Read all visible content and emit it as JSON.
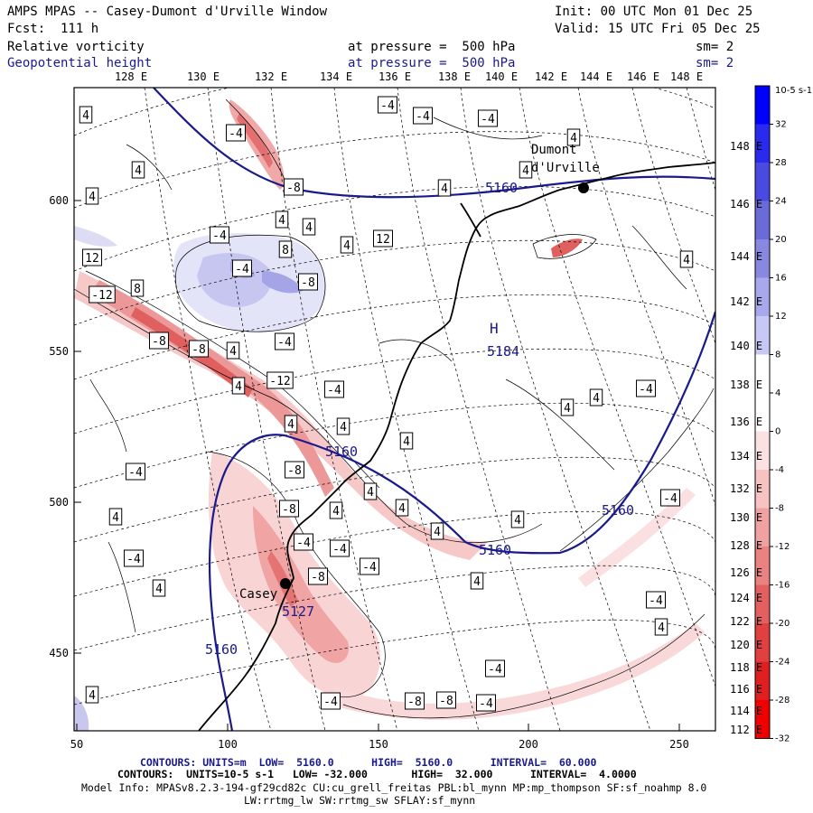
{
  "header": {
    "title": "AMPS MPAS -- Casey-Dumont d'Urville Window",
    "init": "Init: 00 UTC Mon 01 Dec 25",
    "fcst": "Fcst:  111 h",
    "valid": "Valid: 15 UTC Fri 05 Dec 25",
    "field1": "Relative vorticity",
    "field1_level": "at pressure =  500 hPa",
    "field1_sm": "sm= 2",
    "field2": "Geopotential height",
    "field2_level": "at pressure =  500 hPa",
    "field2_sm": "sm= 2"
  },
  "axes": {
    "top_lon_labels": [
      "128 E",
      "130 E",
      "132 E",
      "134 E",
      "136 E",
      "138 E",
      "140 E",
      "142 E",
      "144 E",
      "146 E",
      "148 E"
    ],
    "right_lon_labels": [
      "148 E",
      "146 E",
      "144 E",
      "142 E",
      "140 E",
      "138 E",
      "136 E",
      "134 E",
      "132 E",
      "130 E",
      "128 E",
      "126 E",
      "124 E",
      "122 E",
      "120 E",
      "118 E",
      "116 E",
      "114 E",
      "112 E"
    ],
    "left_y_labels": [
      "600",
      "550",
      "500",
      "450"
    ],
    "bottom_x_labels": [
      "50",
      "100",
      "150",
      "200",
      "250"
    ]
  },
  "colorbar": {
    "unit_label": "10-5 s-1",
    "ticks": [
      "32",
      "28",
      "24",
      "20",
      "16",
      "12",
      "8",
      "4",
      "0",
      "-4",
      "-8",
      "-12",
      "-16",
      "-20",
      "-24",
      "-28",
      "-32"
    ],
    "colors": [
      "#0000ff",
      "#2a2aee",
      "#4a4ae0",
      "#6a6ad8",
      "#8888e0",
      "#a8a8ec",
      "#c8c8f4",
      "#ffffff",
      "#ffffff",
      "#fbe2e2",
      "#f6c2c2",
      "#f0a2a2",
      "#ea8282",
      "#e46060",
      "#e04040",
      "#e02020",
      "#f00000"
    ]
  },
  "map": {
    "stations": [
      "Dumont d'Urville",
      "Casey"
    ],
    "station_line1": "Dumont",
    "station_line2": "d'Urville",
    "station_casey": "Casey",
    "height_labels": [
      "5160",
      "5184",
      "5160",
      "5160",
      "5127",
      "5160",
      "5160"
    ],
    "high_marker": "H",
    "vorticity_labels": [
      "4",
      "-4",
      "-4",
      "-4",
      "-4",
      "4",
      "4",
      "4",
      "-8",
      "4",
      "4",
      "4",
      "4",
      "-4",
      "4",
      "12",
      "8",
      "12",
      "8",
      "-4",
      "-8",
      "-12",
      "-8",
      "-8",
      "4",
      "-4",
      "-12",
      "4",
      "-4",
      "4",
      "4",
      "4",
      "-4",
      "-8",
      "4",
      "4",
      "4",
      "4",
      "-8",
      "4",
      "-4",
      "-4",
      "4",
      "-4",
      "-8",
      "-4",
      "4",
      "4",
      "4",
      "-4",
      "4",
      "4",
      "-4",
      "-4",
      "-4",
      "4",
      "-4",
      "-8",
      "-8",
      "-4",
      "4"
    ]
  },
  "footer": {
    "line1_a": "CONTOURS: UNITS=m  LOW=  5160.0      HIGH=  5160.0      INTERVAL=  60.000",
    "line2": "CONTOURS:  UNITS=10-5 s-1   LOW= -32.000       HIGH=  32.000      INTERVAL=  4.0000",
    "line3": "Model Info: MPASv8.2.3-194-gf29cd82c CU:cu_grell_freitas PBL:bl_mynn MP:mp_thompson SF:sf_noahmp 8.0",
    "line4": "LW:rrtmg_lw SW:rrtmg_sw SFLAY:sf_mynn"
  },
  "colors": {
    "height_contour": "#1a1a8c",
    "coast": "#000000",
    "grid": "#000000"
  }
}
